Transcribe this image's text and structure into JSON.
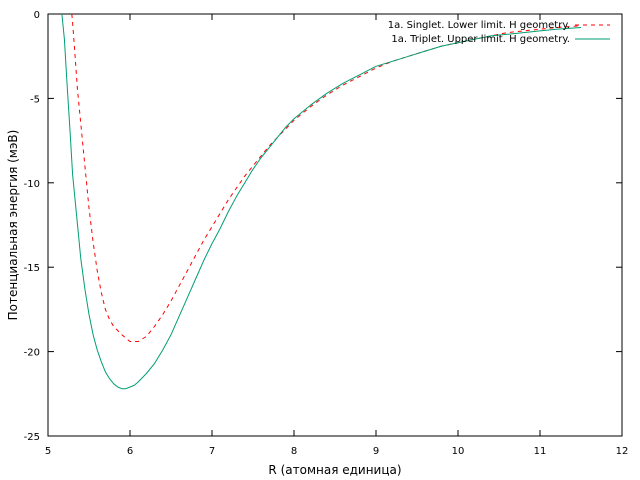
{
  "chart_data": {
    "type": "line",
    "xlabel": "R (атомная единица)",
    "ylabel": "Потенциальная энергия (мэВ)",
    "xlim": [
      5,
      12
    ],
    "ylim": [
      -25,
      0
    ],
    "x_ticks": [
      "5",
      "6",
      "7",
      "8",
      "9",
      "10",
      "11",
      "12"
    ],
    "y_ticks": [
      "0",
      "-5",
      "-10",
      "-15",
      "-20",
      "-25"
    ],
    "grid": false,
    "legend_position": "top-right",
    "series": [
      {
        "name": "1a. Singlet. Lower limit. H geometry.",
        "color": "#ff0000",
        "dash": "dashed",
        "points": [
          [
            5.29,
            0
          ],
          [
            5.3,
            -0.5
          ],
          [
            5.33,
            -2.5
          ],
          [
            5.36,
            -4.5
          ],
          [
            5.4,
            -6.5
          ],
          [
            5.45,
            -9
          ],
          [
            5.5,
            -11.5
          ],
          [
            5.55,
            -13.5
          ],
          [
            5.6,
            -15.2
          ],
          [
            5.65,
            -16.5
          ],
          [
            5.7,
            -17.5
          ],
          [
            5.75,
            -18.1
          ],
          [
            5.8,
            -18.5
          ],
          [
            5.9,
            -19
          ],
          [
            6.0,
            -19.4
          ],
          [
            6.1,
            -19.4
          ],
          [
            6.2,
            -19.1
          ],
          [
            6.3,
            -18.5
          ],
          [
            6.4,
            -17.8
          ],
          [
            6.5,
            -17
          ],
          [
            6.6,
            -16.1
          ],
          [
            6.7,
            -15.2
          ],
          [
            6.8,
            -14.3
          ],
          [
            6.9,
            -13.4
          ],
          [
            7.0,
            -12.6
          ],
          [
            7.1,
            -11.8
          ],
          [
            7.2,
            -11
          ],
          [
            7.3,
            -10.3
          ],
          [
            7.4,
            -9.6
          ],
          [
            7.5,
            -9
          ],
          [
            7.6,
            -8.4
          ],
          [
            7.7,
            -7.8
          ],
          [
            7.8,
            -7.3
          ],
          [
            7.9,
            -6.8
          ],
          [
            8.0,
            -6.3
          ],
          [
            8.2,
            -5.5
          ],
          [
            8.4,
            -4.8
          ],
          [
            8.6,
            -4.2
          ],
          [
            8.8,
            -3.7
          ],
          [
            9.0,
            -3.2
          ],
          [
            9.2,
            -2.8
          ],
          [
            9.4,
            -2.5
          ],
          [
            9.6,
            -2.2
          ],
          [
            9.8,
            -1.9
          ],
          [
            10.0,
            -1.7
          ],
          [
            10.2,
            -1.5
          ],
          [
            10.4,
            -1.3
          ],
          [
            10.6,
            -1.1
          ],
          [
            10.8,
            -1
          ],
          [
            11.0,
            -0.9
          ],
          [
            11.2,
            -0.8
          ],
          [
            11.5,
            -0.7
          ]
        ]
      },
      {
        "name": "1a. Triplet. Upper limit. H geometry.",
        "color": "#009e73",
        "dash": "solid",
        "points": [
          [
            5.17,
            0
          ],
          [
            5.2,
            -1.5
          ],
          [
            5.23,
            -4
          ],
          [
            5.27,
            -7
          ],
          [
            5.3,
            -9.5
          ],
          [
            5.35,
            -12
          ],
          [
            5.4,
            -14.5
          ],
          [
            5.45,
            -16.3
          ],
          [
            5.5,
            -17.8
          ],
          [
            5.55,
            -19
          ],
          [
            5.6,
            -19.9
          ],
          [
            5.65,
            -20.6
          ],
          [
            5.7,
            -21.2
          ],
          [
            5.75,
            -21.6
          ],
          [
            5.8,
            -21.9
          ],
          [
            5.85,
            -22.1
          ],
          [
            5.9,
            -22.2
          ],
          [
            5.95,
            -22.2
          ],
          [
            6.0,
            -22.1
          ],
          [
            6.05,
            -22
          ],
          [
            6.1,
            -21.8
          ],
          [
            6.2,
            -21.3
          ],
          [
            6.3,
            -20.7
          ],
          [
            6.4,
            -19.9
          ],
          [
            6.5,
            -19
          ],
          [
            6.6,
            -17.9
          ],
          [
            6.7,
            -16.8
          ],
          [
            6.8,
            -15.7
          ],
          [
            6.9,
            -14.6
          ],
          [
            7.0,
            -13.6
          ],
          [
            7.1,
            -12.7
          ],
          [
            7.2,
            -11.7
          ],
          [
            7.3,
            -10.8
          ],
          [
            7.4,
            -10
          ],
          [
            7.5,
            -9.2
          ],
          [
            7.6,
            -8.5
          ],
          [
            7.7,
            -7.9
          ],
          [
            7.8,
            -7.3
          ],
          [
            7.9,
            -6.7
          ],
          [
            8.0,
            -6.2
          ],
          [
            8.2,
            -5.4
          ],
          [
            8.4,
            -4.7
          ],
          [
            8.6,
            -4.1
          ],
          [
            8.8,
            -3.6
          ],
          [
            9.0,
            -3.1
          ],
          [
            9.2,
            -2.8
          ],
          [
            9.4,
            -2.5
          ],
          [
            9.6,
            -2.2
          ],
          [
            9.8,
            -1.9
          ],
          [
            10.0,
            -1.7
          ],
          [
            10.2,
            -1.5
          ],
          [
            10.4,
            -1.3
          ],
          [
            10.6,
            -1.2
          ],
          [
            10.8,
            -1.1
          ],
          [
            11.0,
            -1
          ],
          [
            11.2,
            -0.9
          ],
          [
            11.5,
            -0.8
          ]
        ]
      }
    ]
  }
}
